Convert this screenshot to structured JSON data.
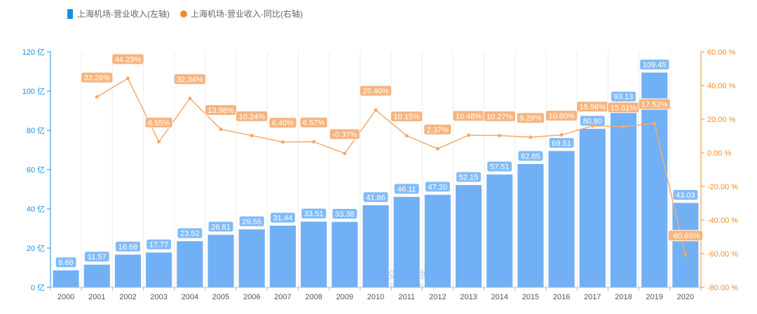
{
  "chart_data": {
    "type": "bar",
    "categories": [
      "2000",
      "2001",
      "2002",
      "2003",
      "2004",
      "2005",
      "2006",
      "2007",
      "2008",
      "2009",
      "2010",
      "2011",
      "2012",
      "2013",
      "2014",
      "2015",
      "2016",
      "2017",
      "2018",
      "2019",
      "2020"
    ],
    "series": [
      {
        "name": "上海机场-营业收入(左轴)",
        "type": "bar",
        "axis": "left",
        "color": "#71b0f5",
        "values": [
          8.68,
          11.57,
          16.68,
          17.77,
          23.52,
          26.81,
          29.55,
          31.44,
          33.51,
          33.38,
          41.86,
          46.11,
          47.2,
          52.15,
          57.51,
          62.85,
          69.51,
          80.8,
          93.13,
          109.45,
          43.03
        ],
        "labels": [
          "8.68",
          "11.57",
          "16.68",
          "17.77",
          "23.52",
          "26.81",
          "29.55",
          "31.44",
          "33.51",
          "33.38",
          "41.86",
          "46.11",
          "47.20",
          "52.15",
          "57.51",
          "62.85",
          "69.51",
          "80.80",
          "93.13",
          "109.45",
          "43.03"
        ]
      },
      {
        "name": "上海机场-营业收入-同比(右轴)",
        "type": "line",
        "axis": "right",
        "color": "#f5a96a",
        "values": [
          null,
          33.26,
          44.23,
          6.55,
          32.34,
          13.98,
          10.24,
          6.4,
          6.57,
          -0.37,
          25.4,
          10.15,
          2.37,
          10.48,
          10.27,
          9.29,
          10.6,
          15.98,
          15.51,
          17.52,
          -60.68
        ],
        "labels": [
          null,
          "33.26%",
          "44.23%",
          "6.55%",
          "32.34%",
          "13.98%",
          "10.24%",
          "6.40%",
          "6.57%",
          "-0.37%",
          "25.40%",
          "10.15%",
          "2.37%",
          "10.48%",
          "10.27%",
          "9.29%",
          "10.60%",
          "15.98%",
          "15.51%",
          "17.52%",
          "-60.68%"
        ]
      }
    ],
    "y_left": {
      "range": [
        0,
        120
      ],
      "ticks": [
        0,
        20,
        40,
        60,
        80,
        100,
        120
      ],
      "tick_labels": [
        "0 亿",
        "20 亿",
        "40 亿",
        "60 亿",
        "80 亿",
        "100 亿",
        "120 亿"
      ],
      "color": "#1a8fdc"
    },
    "y_right": {
      "range": [
        -80,
        60
      ],
      "ticks": [
        -80,
        -60,
        -40,
        -20,
        0,
        20,
        40,
        60
      ],
      "tick_labels": [
        "-80.00 %",
        "-60.00 %",
        "-40.00 %",
        "-20.00 %",
        "0.00 %",
        "20.00 %",
        "40.00 %",
        "60.00 %"
      ],
      "color": "#f08c2a"
    },
    "legend": {
      "position": "top-left"
    },
    "watermark": {
      "main": "投资数据",
      "sub": "touzid.com"
    }
  }
}
